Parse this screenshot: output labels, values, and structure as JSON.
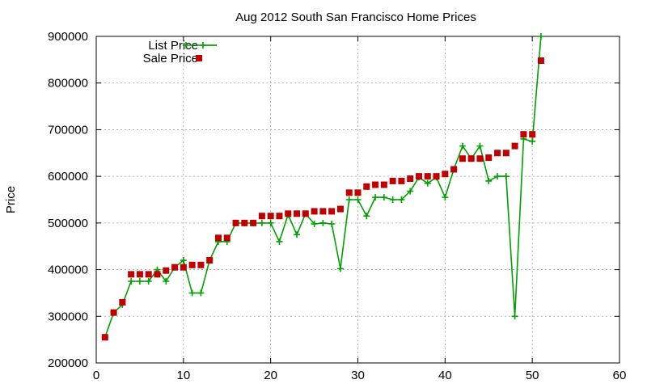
{
  "chart_data": {
    "type": "line",
    "title": "Aug 2012 South San Francisco Home Prices",
    "xlabel": "",
    "ylabel": "Price",
    "xlim": [
      0,
      60
    ],
    "ylim": [
      200000,
      900000
    ],
    "xticks": [
      0,
      10,
      20,
      30,
      40,
      50,
      60
    ],
    "yticks": [
      200000,
      300000,
      400000,
      500000,
      600000,
      700000,
      800000,
      900000
    ],
    "grid": true,
    "legend_position": "top-left",
    "series": [
      {
        "name": "List Price",
        "style": "line-with-plus-markers",
        "color": "#00a000",
        "x": [
          1,
          2,
          3,
          4,
          5,
          6,
          7,
          8,
          9,
          10,
          11,
          12,
          13,
          14,
          15,
          16,
          17,
          18,
          19,
          20,
          21,
          22,
          23,
          24,
          25,
          26,
          27,
          28,
          29,
          30,
          31,
          32,
          33,
          34,
          35,
          36,
          37,
          38,
          39,
          40,
          41,
          42,
          43,
          44,
          45,
          46,
          47,
          48,
          49,
          50,
          51
        ],
        "values": [
          255000,
          308000,
          325000,
          375000,
          375000,
          375000,
          400000,
          375000,
          405000,
          420000,
          350000,
          350000,
          420000,
          460000,
          460000,
          500000,
          500000,
          500000,
          500000,
          500000,
          460000,
          518000,
          475000,
          520000,
          498000,
          500000,
          498000,
          402000,
          550000,
          550000,
          515000,
          555000,
          555000,
          550000,
          550000,
          568000,
          598000,
          585000,
          598000,
          555000,
          615000,
          665000,
          638000,
          665000,
          590000,
          600000,
          600000,
          300000,
          680000,
          675000,
          900000
        ]
      },
      {
        "name": "Sale Price",
        "style": "square-markers",
        "color": "#c00000",
        "x": [
          1,
          2,
          3,
          4,
          5,
          6,
          7,
          8,
          9,
          10,
          11,
          12,
          13,
          14,
          15,
          16,
          17,
          18,
          19,
          20,
          21,
          22,
          23,
          24,
          25,
          26,
          27,
          28,
          29,
          30,
          31,
          32,
          33,
          34,
          35,
          36,
          37,
          38,
          39,
          40,
          41,
          42,
          43,
          44,
          45,
          46,
          47,
          48,
          49,
          50,
          51
        ],
        "values": [
          255000,
          308000,
          330000,
          390000,
          390000,
          390000,
          390000,
          398000,
          405000,
          405000,
          410000,
          410000,
          420000,
          468000,
          468000,
          500000,
          500000,
          500000,
          515000,
          515000,
          515000,
          520000,
          520000,
          520000,
          525000,
          525000,
          525000,
          530000,
          565000,
          565000,
          578000,
          582000,
          582000,
          590000,
          590000,
          595000,
          600000,
          600000,
          600000,
          605000,
          615000,
          638000,
          638000,
          638000,
          640000,
          650000,
          650000,
          665000,
          690000,
          690000,
          848000
        ]
      }
    ]
  }
}
